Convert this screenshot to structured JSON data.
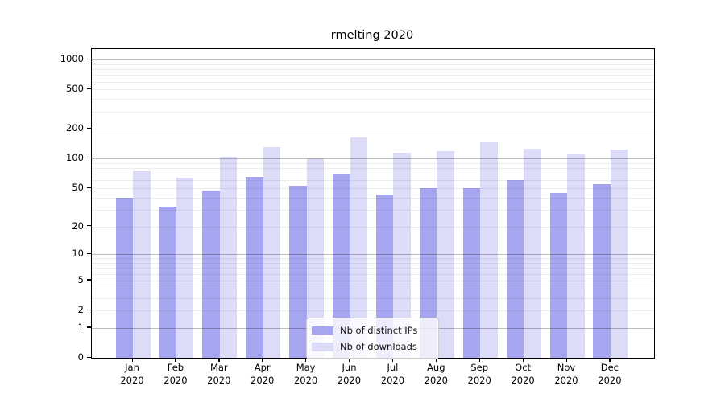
{
  "title": "rmelting 2020",
  "chart_data": {
    "type": "bar",
    "title": "rmelting 2020",
    "categories": [
      "Jan 2020",
      "Feb 2020",
      "Mar 2020",
      "Apr 2020",
      "May 2020",
      "Jun 2020",
      "Jul 2020",
      "Aug 2020",
      "Sep 2020",
      "Oct 2020",
      "Nov 2020",
      "Dec 2020"
    ],
    "series": [
      {
        "name": "Nb of distinct IPs",
        "color": "#a6a6f0",
        "values": [
          40,
          32,
          47,
          65,
          53,
          70,
          43,
          50,
          50,
          60,
          45,
          55
        ]
      },
      {
        "name": "Nb of downloads",
        "color": "#dcdcf9",
        "values": [
          75,
          64,
          104,
          130,
          100,
          164,
          115,
          120,
          150,
          127,
          110,
          125
        ]
      }
    ],
    "xlabel": "",
    "ylabel": "",
    "y_scale": "log10(1+x)",
    "ylim": [
      0,
      1280
    ],
    "y_ticks": [
      0,
      1,
      2,
      5,
      10,
      20,
      50,
      100,
      200,
      500,
      1000
    ],
    "y_major_gridlines": [
      1,
      10,
      100,
      1000
    ],
    "y_minor_gridlines": [
      2,
      3,
      4,
      5,
      6,
      7,
      8,
      9,
      20,
      30,
      40,
      50,
      60,
      70,
      80,
      90,
      200,
      300,
      400,
      500,
      600,
      700,
      800,
      900
    ],
    "grid": "on",
    "legend_position": "inside lower center-right"
  }
}
